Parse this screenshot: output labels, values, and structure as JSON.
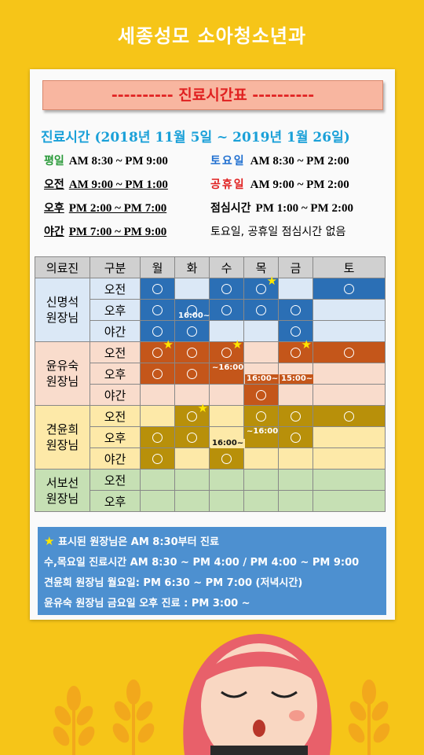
{
  "header": {
    "title": "세종성모 소아청소년과"
  },
  "banner": {
    "text": "---------- 진료시간표 ----------"
  },
  "period": "진료시간 (2018년 11월 5일 ~ 2019년 1월 26일)",
  "hours_left": [
    {
      "label": "평일",
      "time": "AM 8:30 ~ PM 9:00",
      "color": "#2a9a3a"
    },
    {
      "label": "오전",
      "time": "AM 9:00 ~ PM 1:00",
      "color": "#111111"
    },
    {
      "label": "오후",
      "time": "PM 2:00 ~ PM 7:00",
      "color": "#111111"
    },
    {
      "label": "야간",
      "time": "PM 7:00 ~ PM 9:00",
      "color": "#111111"
    }
  ],
  "hours_right": [
    {
      "label": "토요일",
      "time": "AM 8:30 ~ PM 2:00",
      "color": "#1f6fd0"
    },
    {
      "label": "공휴일",
      "time": "AM 9:00 ~ PM 2:00",
      "color": "#e02020"
    },
    {
      "label": "점심시간",
      "time": "PM 1:00 ~ PM 2:00",
      "color": "#111111"
    },
    {
      "label": "토요일, 공휴일 점심시간 없음",
      "time": "",
      "color": "#111111"
    }
  ],
  "table": {
    "headers": [
      "의료진",
      "구분",
      "월",
      "화",
      "수",
      "목",
      "금",
      "토"
    ],
    "doctors": [
      {
        "name": "신명석\n원장님",
        "rows": [
          "오전",
          "오후",
          "야간"
        ]
      },
      {
        "name": "윤유숙\n원장님",
        "rows": [
          "오전",
          "오후",
          "야간"
        ]
      },
      {
        "name": "견윤희\n원장님",
        "rows": [
          "오전",
          "오후",
          "야간"
        ]
      },
      {
        "name": "서보선\n원장님",
        "rows": [
          "오전",
          "오후"
        ]
      }
    ],
    "circle": "○",
    "tags": [
      "16:00~",
      "~16:00",
      "16:00~",
      "15:00~",
      "~16:00",
      "16:00~"
    ]
  },
  "notes": {
    "star": "★",
    "line1": "표시된 원장님은 AM 8:30부터 진료",
    "line2": "수,목요일 진료시간 AM 8:30 ~ PM 4:00 / PM 4:00 ~ PM 9:00",
    "line3": "견윤희 원장님 월요일: PM 6:30 ~ PM 7:00 (저녁시간)",
    "line4": "윤유숙 원장님 금요일  오후 진료 :  PM 3:00 ~"
  },
  "colors": {
    "background": "#f6c518",
    "doc1_active": "#2b6fb5",
    "doc1_idle": "#dbe8f6",
    "doc2_active": "#c4561a",
    "doc2_idle": "#f9dccc",
    "doc3_active": "#b8900a",
    "doc3_idle": "#fde9a8",
    "doc4_idle": "#c6e0b4"
  }
}
